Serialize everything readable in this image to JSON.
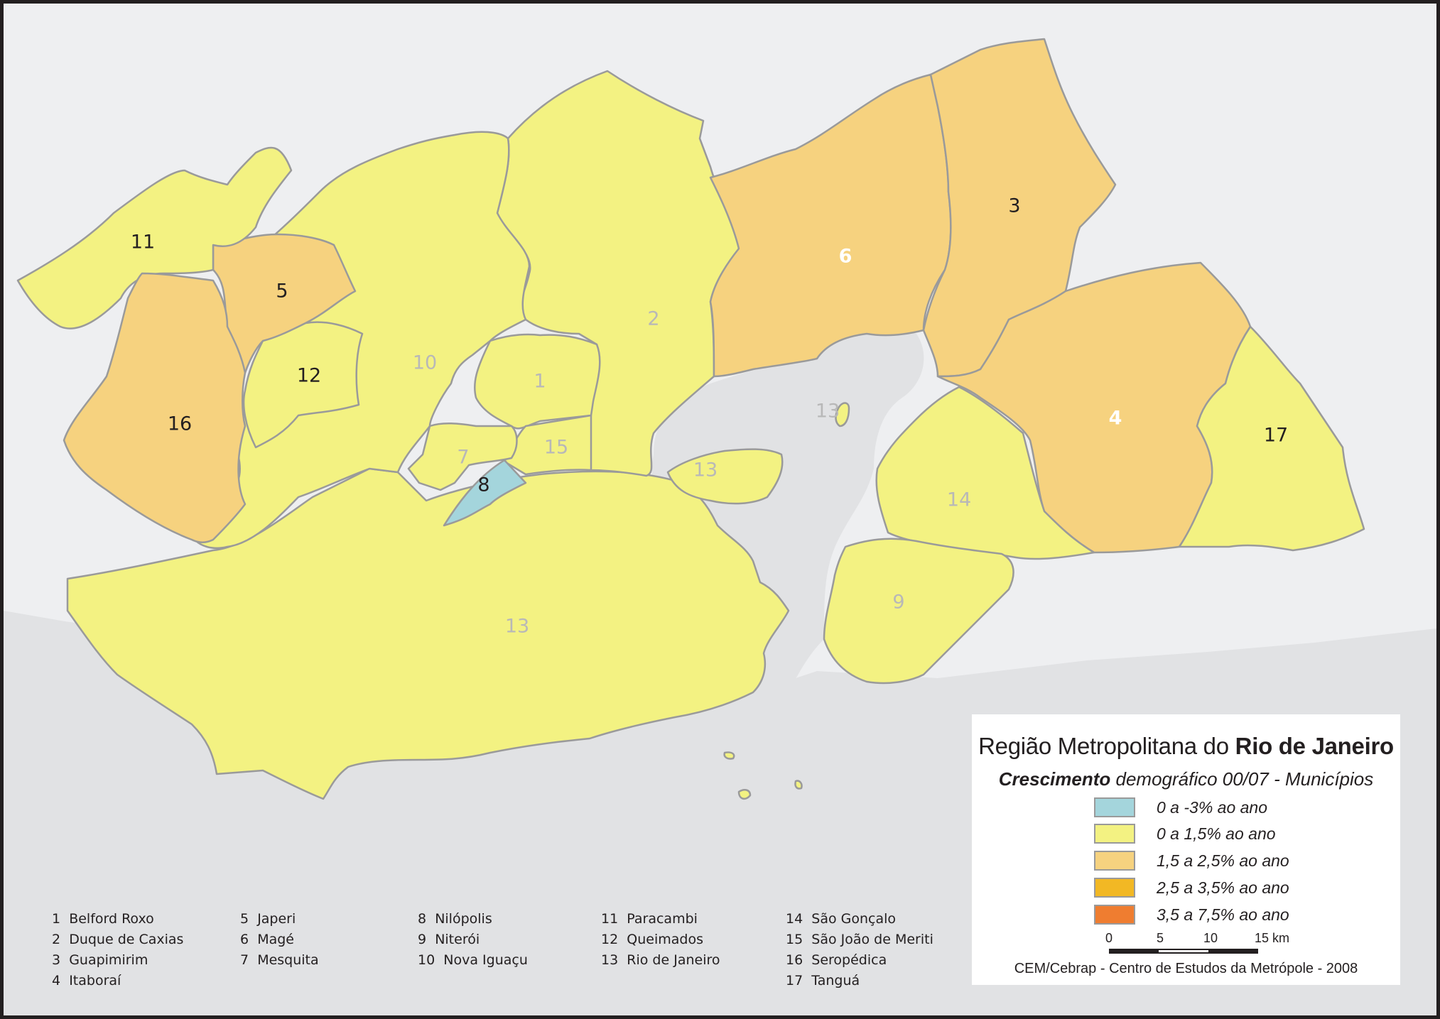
{
  "legend": {
    "title_prefix": "Região Metropolitana do ",
    "title_bold": "Rio de Janeiro",
    "subtitle_bold": "Crescimento",
    "subtitle_rest": " demográfico 00/07 - Municípios",
    "classes": [
      {
        "label": "0 a -3% ao ano",
        "color": "#a4d5dc"
      },
      {
        "label": "0 a 1,5% ao ano",
        "color": "#f3f282"
      },
      {
        "label": "1,5 a 2,5% ao ano",
        "color": "#f6d27f"
      },
      {
        "label": "2,5 a 3,5% ao ano",
        "color": "#f2b824"
      },
      {
        "label": "3,5 a 7,5% ao ano",
        "color": "#ef7d30"
      }
    ],
    "scale": {
      "ticks": [
        "0",
        "5",
        "10",
        "15 km"
      ]
    },
    "credit": "CEM/Cebrap - Centro de Estudos da Metrópole - 2008"
  },
  "colors": {
    "water": "#e1e2e4",
    "land_outside": "#eeeff1",
    "border": "#9a9a9a",
    "frame": "#231f20"
  },
  "municipalities": [
    {
      "id": "1",
      "name": "Belford Roxo",
      "class": 1,
      "label_color": "#b8b8b8"
    },
    {
      "id": "2",
      "name": "Duque de Caxias",
      "class": 1,
      "label_color": "#b8b8b8"
    },
    {
      "id": "3",
      "name": "Guapimirim",
      "class": 2,
      "label_color": "#231f20"
    },
    {
      "id": "4",
      "name": "Itaboraí",
      "class": 2,
      "label_color": "#ffffff"
    },
    {
      "id": "5",
      "name": "Japeri",
      "class": 2,
      "label_color": "#231f20"
    },
    {
      "id": "6",
      "name": "Magé",
      "class": 2,
      "label_color": "#ffffff"
    },
    {
      "id": "7",
      "name": "Mesquita",
      "class": 1,
      "label_color": "#b8b8b8"
    },
    {
      "id": "8",
      "name": "Nilópolis",
      "class": 0,
      "label_color": "#231f20"
    },
    {
      "id": "9",
      "name": "Niterói",
      "class": 1,
      "label_color": "#b8b8b8"
    },
    {
      "id": "10",
      "name": "Nova Iguaçu",
      "class": 1,
      "label_color": "#b8b8b8"
    },
    {
      "id": "11",
      "name": "Paracambi",
      "class": 1,
      "label_color": "#231f20"
    },
    {
      "id": "12",
      "name": "Queimados",
      "class": 1,
      "label_color": "#231f20"
    },
    {
      "id": "13",
      "name": "Rio de Janeiro",
      "class": 1,
      "label_color": "#b8b8b8"
    },
    {
      "id": "14",
      "name": "São Gonçalo",
      "class": 1,
      "label_color": "#b8b8b8"
    },
    {
      "id": "15",
      "name": "São João de Meriti",
      "class": 1,
      "label_color": "#b8b8b8"
    },
    {
      "id": "16",
      "name": "Seropédica",
      "class": 2,
      "label_color": "#231f20"
    },
    {
      "id": "17",
      "name": "Tanguá",
      "class": 1,
      "label_color": "#231f20"
    }
  ],
  "island_labels": [
    "13",
    "13"
  ]
}
